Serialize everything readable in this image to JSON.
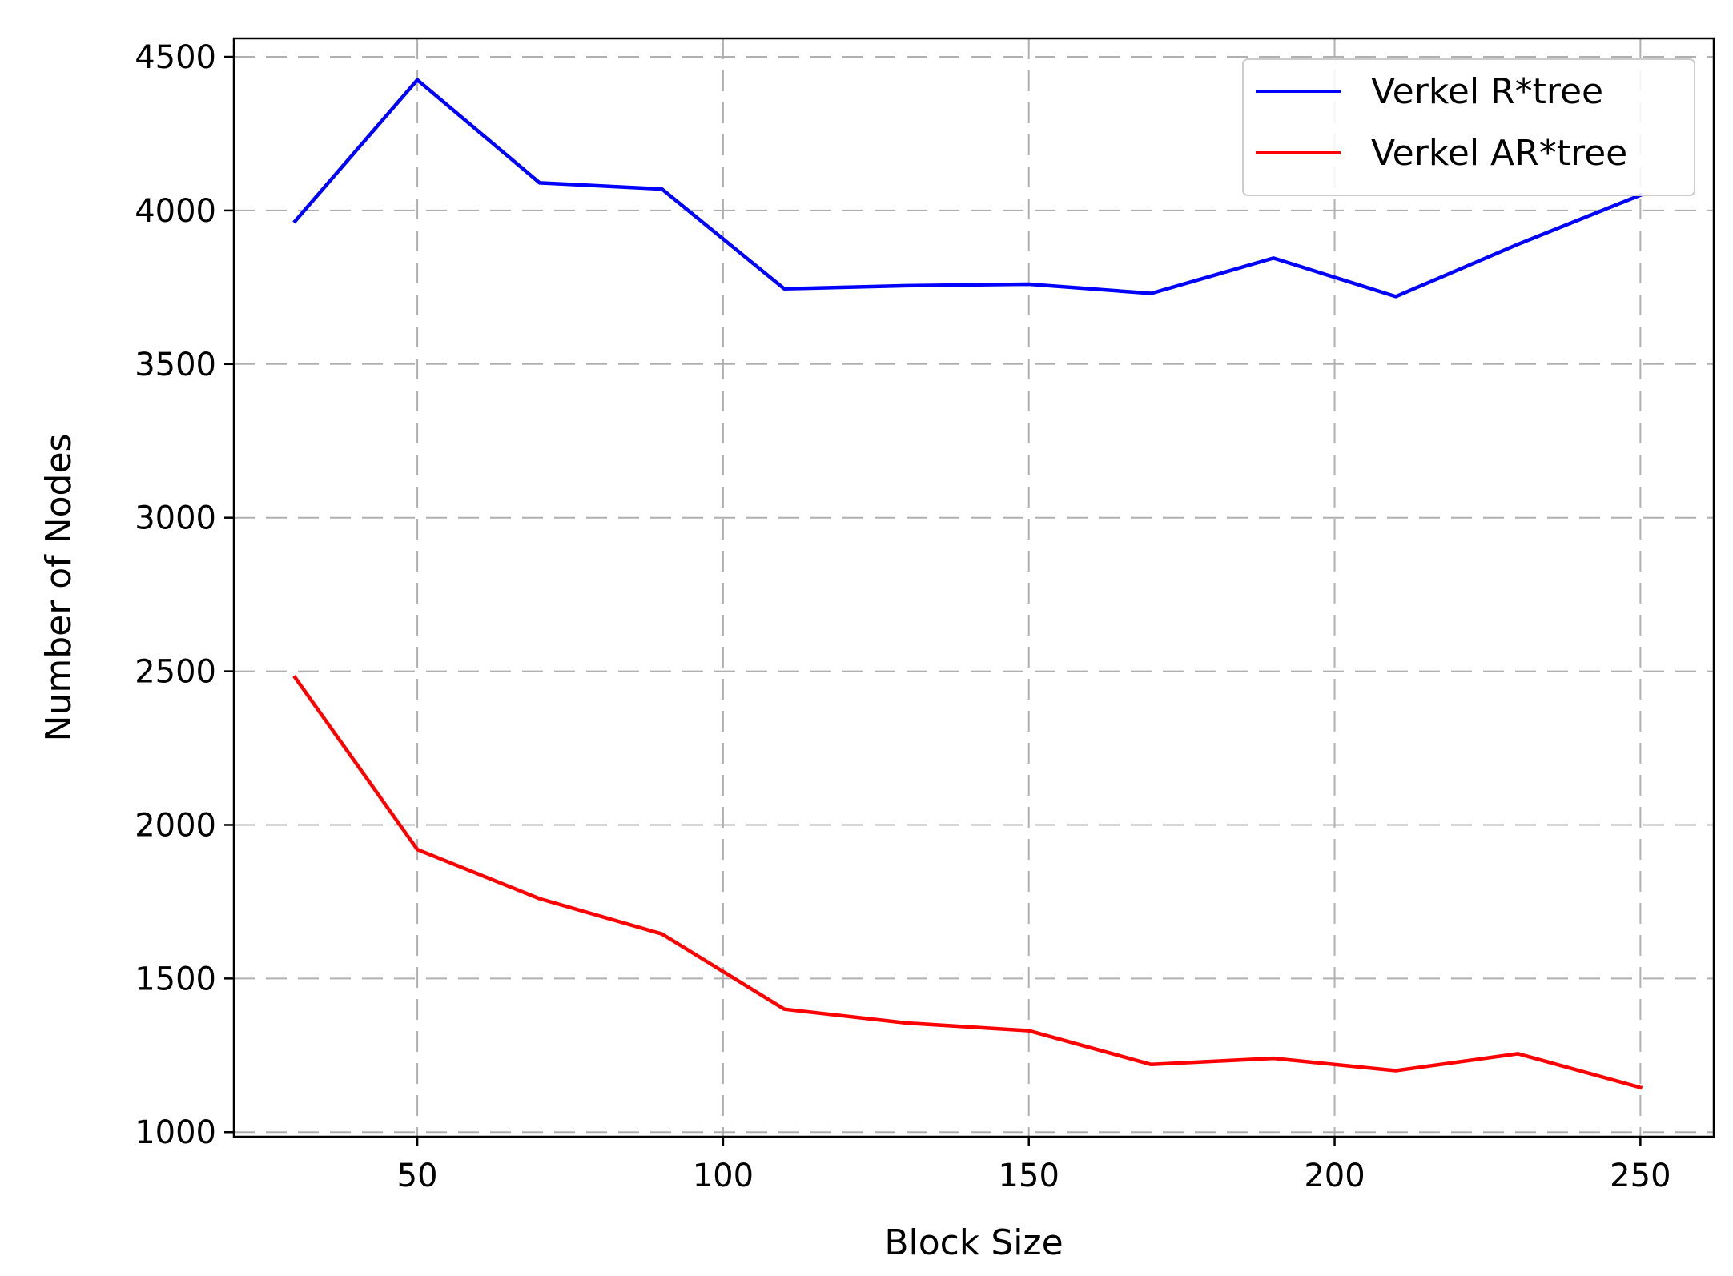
{
  "chart_data": {
    "type": "line",
    "title": "",
    "xlabel": "Block Size",
    "ylabel": "Number of Nodes",
    "xlim": [
      20,
      262
    ],
    "ylim": [
      985,
      4560
    ],
    "x_ticks": [
      50,
      100,
      150,
      200,
      250
    ],
    "x_tick_labels": [
      "50",
      "100",
      "150",
      "200",
      "250"
    ],
    "y_ticks": [
      1000,
      1500,
      2000,
      2500,
      3000,
      3500,
      4000,
      4500
    ],
    "y_tick_labels": [
      "1000",
      "1500",
      "2000",
      "2500",
      "3000",
      "3500",
      "4000",
      "4500"
    ],
    "grid": true,
    "grid_style": "dashed",
    "legend_position": "top-right",
    "x": [
      30,
      50,
      70,
      90,
      110,
      130,
      150,
      170,
      190,
      210,
      230,
      250
    ],
    "series": [
      {
        "name": "Verkel R*tree",
        "color": "#0000ff",
        "values": [
          3965,
          4425,
          4090,
          4070,
          3745,
          3755,
          3760,
          3730,
          3845,
          3720,
          3890,
          4050
        ]
      },
      {
        "name": "Verkel AR*tree",
        "color": "#ff0000",
        "values": [
          2480,
          1920,
          1760,
          1645,
          1400,
          1355,
          1330,
          1220,
          1240,
          1200,
          1255,
          1145
        ]
      }
    ]
  }
}
